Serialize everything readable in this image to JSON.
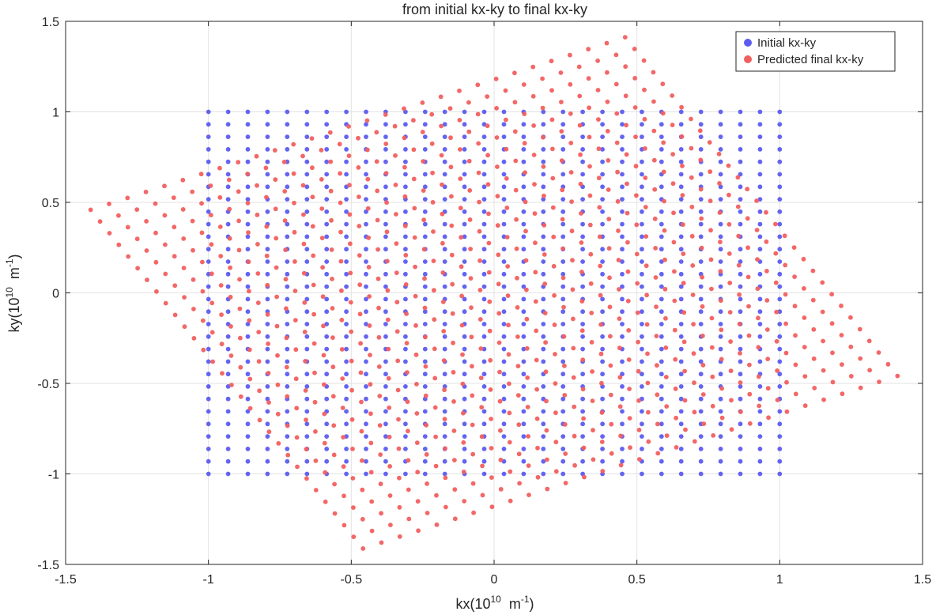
{
  "chart_data": {
    "type": "scatter",
    "title": "from initial kx-ky to final kx-ky",
    "xlabel": {
      "base": "kx(10",
      "exp": "10",
      "unit": "  m",
      "unit_exp": "-1",
      "close": ")"
    },
    "ylabel": {
      "base": "ky(10",
      "exp": "10",
      "unit": "  m",
      "unit_exp": "-1",
      "close": ")"
    },
    "xlim": [
      -1.5,
      1.5
    ],
    "ylim": [
      -1.5,
      1.5
    ],
    "xticks": [
      -1.5,
      -1,
      -0.5,
      0,
      0.5,
      1,
      1.5
    ],
    "yticks": [
      -1.5,
      -1,
      -0.5,
      0,
      0.5,
      1,
      1.5
    ],
    "xtick_labels": [
      "-1.5",
      "-1",
      "-0.5",
      "0",
      "0.5",
      "1",
      "1.5"
    ],
    "ytick_labels": [
      "-1.5",
      "-1",
      "-0.5",
      "0",
      "0.5",
      "1",
      "1.5"
    ],
    "grid": true,
    "legend_position": "top-right",
    "series": [
      {
        "name": "Initial kx-ky",
        "color": "#5c5cf0",
        "generator": {
          "kind": "grid",
          "n": 30,
          "min": -1,
          "max": 1
        }
      },
      {
        "name": "Predicted final kx-ky",
        "color": "#f25f5f",
        "generator": {
          "kind": "rotated-grid",
          "n": 30,
          "min": -1,
          "max": 1,
          "rotation_deg": 27,
          "scale": 1.05
        }
      }
    ]
  }
}
